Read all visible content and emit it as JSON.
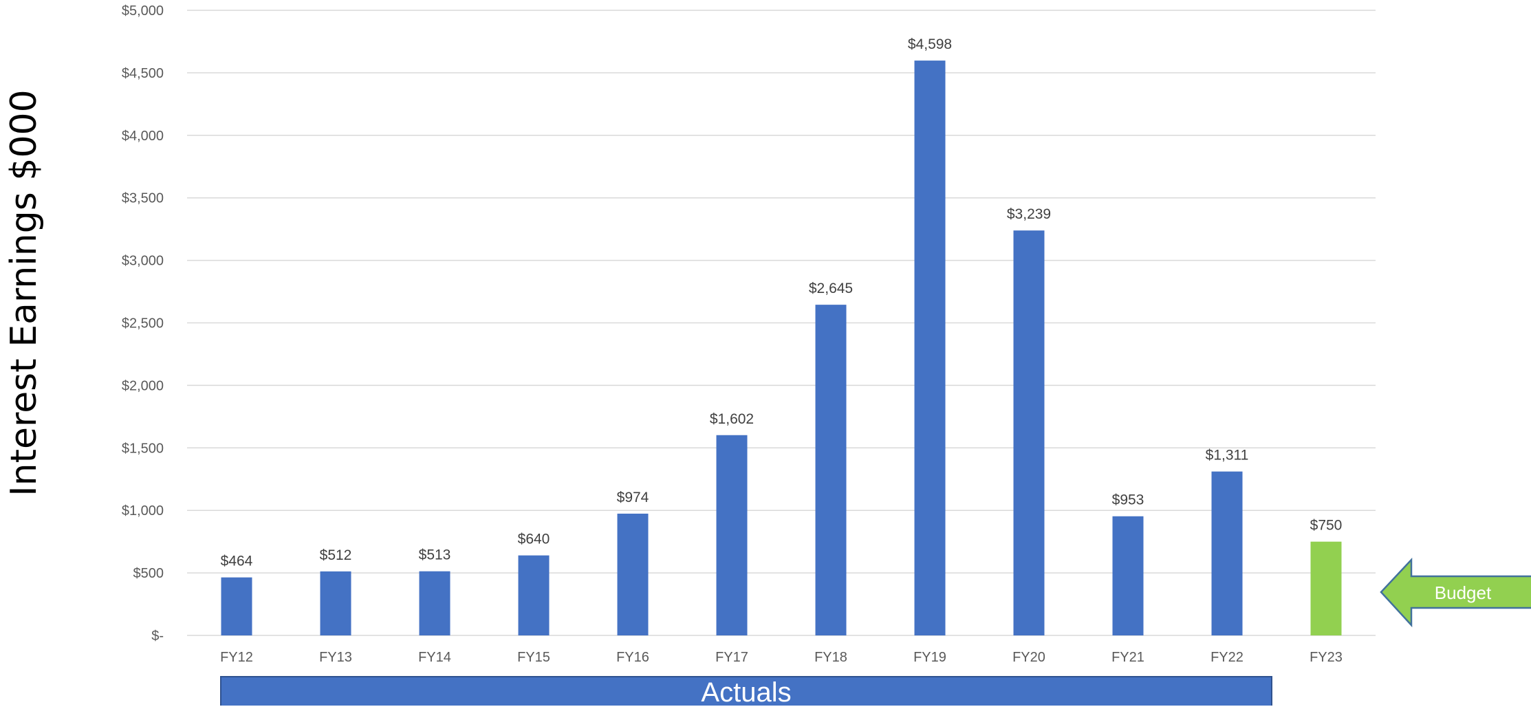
{
  "chart_data": {
    "type": "bar",
    "ylabel": "Interest Earnings $000",
    "xlabel": "",
    "ylim": [
      0,
      5000
    ],
    "yticks": [
      0,
      500,
      1000,
      1500,
      2000,
      2500,
      3000,
      3500,
      4000,
      4500,
      5000
    ],
    "ytick_labels": [
      "$-",
      "$500",
      "$1,000",
      "$1,500",
      "$2,000",
      "$2,500",
      "$3,000",
      "$3,500",
      "$4,000",
      "$4,500",
      "$5,000"
    ],
    "categories": [
      "FY12",
      "FY13",
      "FY14",
      "FY15",
      "FY16",
      "FY17",
      "FY18",
      "FY19",
      "FY20",
      "FY21",
      "FY22",
      "FY23"
    ],
    "values": [
      464,
      512,
      513,
      640,
      974,
      1602,
      2645,
      4598,
      3239,
      953,
      1311,
      750
    ],
    "data_labels": [
      "$464",
      "$512",
      "$513",
      "$640",
      "$974",
      "$1,602",
      "$2,645",
      "$4,598",
      "$3,239",
      "$953",
      "$1,311",
      "$750"
    ],
    "kinds": [
      "actual",
      "actual",
      "actual",
      "actual",
      "actual",
      "actual",
      "actual",
      "actual",
      "actual",
      "actual",
      "actual",
      "budget"
    ],
    "grid": true,
    "colors": {
      "actual": "#4472c4",
      "budget": "#92d050",
      "arrow_border": "#41719c"
    },
    "annotations": {
      "actuals_label": "Actuals",
      "budget_label": "Budget"
    }
  }
}
